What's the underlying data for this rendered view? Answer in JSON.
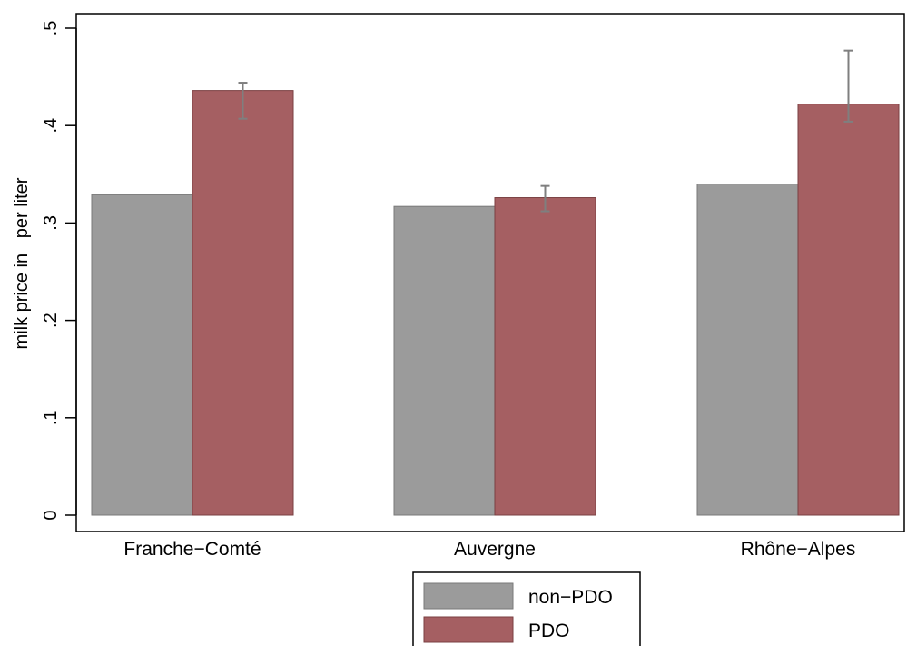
{
  "chart_data": {
    "type": "bar",
    "categories": [
      "Franche−Comté",
      "Auvergne",
      "Rhône−Alpes"
    ],
    "series": [
      {
        "name": "non−PDO",
        "values": [
          0.329,
          0.317,
          0.34
        ],
        "color": "#9b9b9b"
      },
      {
        "name": "PDO",
        "values": [
          0.436,
          0.326,
          0.422
        ],
        "color": "#a55f62",
        "error_low": [
          0.407,
          0.312,
          0.404
        ],
        "error_high": [
          0.444,
          0.338,
          0.477
        ]
      }
    ],
    "ylabel": "milk price in   per liter",
    "ylim": [
      0,
      0.5
    ],
    "yticks": [
      0,
      0.1,
      0.2,
      0.3,
      0.4,
      0.5
    ],
    "ytick_labels": [
      "0",
      ".1",
      ".2",
      ".3",
      ".4",
      ".5"
    ],
    "error_bar_color": "#7f7f7f",
    "grid": false,
    "legend_position": "bottom-center"
  }
}
